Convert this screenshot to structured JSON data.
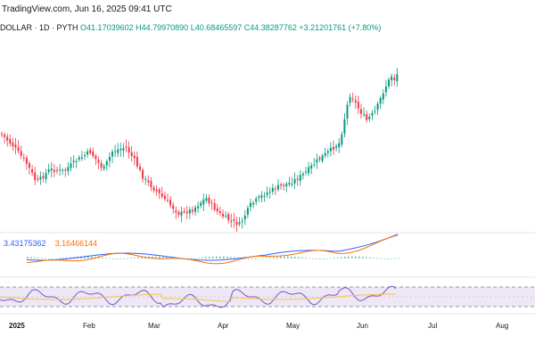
{
  "header": {
    "watermark": "TradingView.com, Jun 16, 2025 09:41 UTC",
    "symbol": "DOLLAR · 1D · PYTH",
    "open": "O41.17039602",
    "high": "H44.79970890",
    "low": "L40.68465597",
    "close": "C44.38287762",
    "change": "+3.21201761 (+7.80%)"
  },
  "macd": {
    "value1": "3.43175362",
    "value2": "3.16466144",
    "color1": "#2962ff",
    "color2": "#ff6d00"
  },
  "colors": {
    "up": "#089981",
    "down": "#f23645",
    "rsi": "#7e57c2",
    "rsi_ma": "#f7c34a",
    "rsi_band": "#ede7f6"
  },
  "xaxis": {
    "labels": [
      "2025",
      "Feb",
      "Mar",
      "Apr",
      "May",
      "Jun",
      "Jul",
      "Aug"
    ]
  }
}
